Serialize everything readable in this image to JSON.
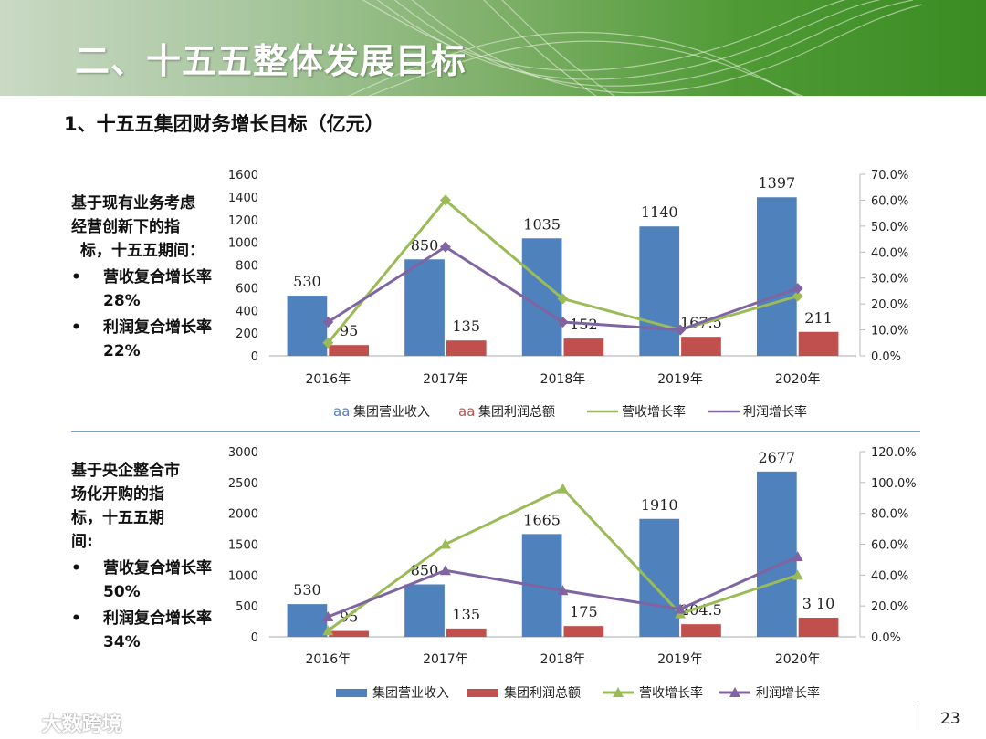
{
  "header": {
    "title": "二、十五五整体发展目标"
  },
  "subtitle": "1、十五五集团财务增长目标（亿元）",
  "sections": [
    {
      "intro": [
        "基于现有业务考虑",
        "经营创新下的指",
        "标，十五五期间："
      ],
      "bullets": [
        {
          "marker": "•",
          "text": "营收复合增长率28%"
        },
        {
          "marker": "•",
          "text": "利润复合增长率22%"
        }
      ]
    },
    {
      "intro": [
        "基于央企整合市",
        "场化开购的指",
        "标，十五五期",
        "间:"
      ],
      "bullets": [
        {
          "marker": "•",
          "text": "营收复合增长率50%"
        },
        {
          "marker": "•",
          "text": "利润复合增长率34%"
        }
      ]
    }
  ],
  "chart_data": [
    {
      "type": "bar",
      "categories": [
        "2016年",
        "2017年",
        "2018年",
        "2019年",
        "2020年"
      ],
      "series": [
        {
          "name": "集团营业收入",
          "kind": "bar",
          "axis": "left",
          "color": "#4f81bd",
          "values": [
            530,
            850,
            1035,
            1140,
            1397
          ],
          "labels": [
            "530",
            "850",
            "1035",
            "1140",
            "1397"
          ],
          "legend_marker": "aa"
        },
        {
          "name": "集团利润总额",
          "kind": "bar",
          "axis": "left",
          "color": "#c0504d",
          "values": [
            95,
            135,
            152,
            167.5,
            211
          ],
          "labels": [
            "95",
            "135",
            "152",
            "167.5",
            "211"
          ],
          "legend_marker": "aa"
        },
        {
          "name": "营收增长率",
          "kind": "line",
          "axis": "right",
          "color": "#9bbb59",
          "marker": "diamond",
          "values": [
            0.05,
            0.6,
            0.22,
            0.1,
            0.23
          ]
        },
        {
          "name": "利润增长率",
          "kind": "line",
          "axis": "right",
          "color": "#8064a2",
          "marker": "diamond",
          "values": [
            0.13,
            0.42,
            0.13,
            0.1,
            0.26
          ]
        }
      ],
      "ylim": [
        0,
        1600
      ],
      "y_ticks": [
        "0",
        "200",
        "400",
        "600",
        "800",
        "1000",
        "1200",
        "1400",
        "1600"
      ],
      "y2lim": [
        0,
        0.7
      ],
      "y2_ticks": [
        "0.0%",
        "10.0%",
        "20.0%",
        "30.0%",
        "40.0%",
        "50.0%",
        "60.0%",
        "70.0%"
      ],
      "legend": "bottom",
      "grid": false
    },
    {
      "type": "bar",
      "categories": [
        "2016年",
        "2017年",
        "2018年",
        "2019年",
        "2020年"
      ],
      "series": [
        {
          "name": "集团营业收入",
          "kind": "bar",
          "axis": "left",
          "color": "#4f81bd",
          "values": [
            530,
            850,
            1665,
            1910,
            2677
          ],
          "labels": [
            "530",
            "850",
            "1665",
            "1910",
            "2677"
          ]
        },
        {
          "name": "集团利润总额",
          "kind": "bar",
          "axis": "left",
          "color": "#c0504d",
          "values": [
            95,
            135,
            175,
            204.5,
            310
          ],
          "labels": [
            "95",
            "135",
            "175",
            "204.5",
            "3 10"
          ]
        },
        {
          "name": "营收增长率",
          "kind": "line",
          "axis": "right",
          "color": "#9bbb59",
          "marker": "triangle",
          "values": [
            0.04,
            0.6,
            0.96,
            0.15,
            0.4
          ]
        },
        {
          "name": "利润增长率",
          "kind": "line",
          "axis": "right",
          "color": "#8064a2",
          "marker": "triangle",
          "values": [
            0.13,
            0.43,
            0.3,
            0.18,
            0.52
          ]
        }
      ],
      "ylim": [
        0,
        3000
      ],
      "y_ticks": [
        "0",
        "500",
        "1000",
        "1500",
        "2000",
        "2500",
        "3000"
      ],
      "y2lim": [
        0,
        1.2
      ],
      "y2_ticks": [
        "0.0%",
        "20.0%",
        "40.0%",
        "60.0%",
        "80.0%",
        "100.0%",
        "120.0%"
      ],
      "legend": "bottom",
      "grid": false
    }
  ],
  "footer": {
    "page_number": "23",
    "watermark": "大数跨境"
  }
}
